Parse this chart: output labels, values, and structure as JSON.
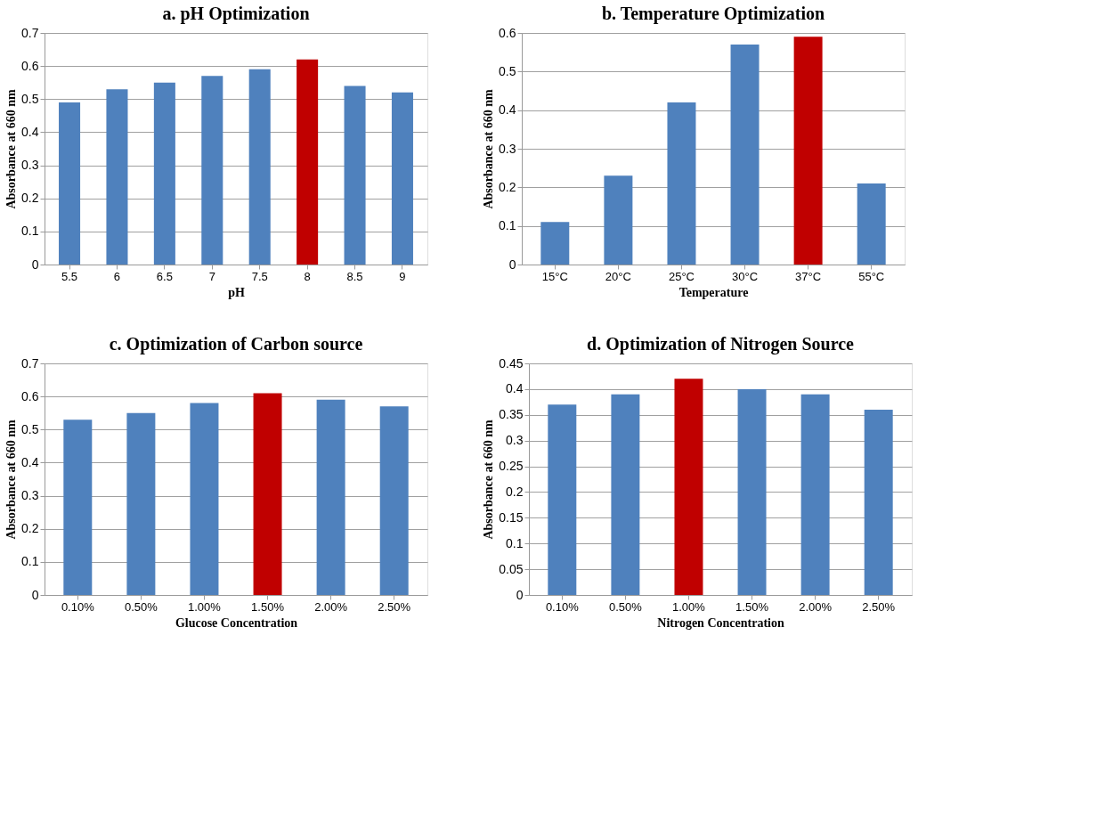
{
  "chart_data": [
    {
      "type": "bar",
      "title": "a. pH Optimization",
      "xlabel": "pH",
      "ylabel": "Absorbance at  660 nm",
      "categories": [
        "5.5",
        "6",
        "6.5",
        "7",
        "7.5",
        "8",
        "8.5",
        "9"
      ],
      "values": [
        0.49,
        0.53,
        0.55,
        0.57,
        0.59,
        0.62,
        0.54,
        0.52
      ],
      "colors": [
        "#4f81bd",
        "#4f81bd",
        "#4f81bd",
        "#4f81bd",
        "#4f81bd",
        "#c00000",
        "#4f81bd",
        "#4f81bd"
      ],
      "ylim": [
        0,
        0.7
      ],
      "yticks": [
        0,
        0.1,
        0.2,
        0.3,
        0.4,
        0.5,
        0.6,
        0.7
      ],
      "grid": "y"
    },
    {
      "type": "bar",
      "title": "b. Temperature Optimization",
      "xlabel": "Temperature",
      "ylabel": "Absorbance at 660 nm",
      "categories": [
        "15°C",
        "20°C",
        "25°C",
        "30°C",
        "37°C",
        "55°C"
      ],
      "values": [
        0.11,
        0.23,
        0.42,
        0.57,
        0.59,
        0.21
      ],
      "colors": [
        "#4f81bd",
        "#4f81bd",
        "#4f81bd",
        "#4f81bd",
        "#c00000",
        "#4f81bd"
      ],
      "ylim": [
        0,
        0.6
      ],
      "yticks": [
        0,
        0.1,
        0.2,
        0.3,
        0.4,
        0.5,
        0.6
      ],
      "grid": "y"
    },
    {
      "type": "bar",
      "title": "c. Optimization of Carbon source",
      "xlabel": "Glucose Concentration",
      "ylabel": "Absorbance at 660 nm",
      "categories": [
        "0.10%",
        "0.50%",
        "1.00%",
        "1.50%",
        "2.00%",
        "2.50%"
      ],
      "values": [
        0.53,
        0.55,
        0.58,
        0.61,
        0.59,
        0.57
      ],
      "colors": [
        "#4f81bd",
        "#4f81bd",
        "#4f81bd",
        "#c00000",
        "#4f81bd",
        "#4f81bd"
      ],
      "ylim": [
        0,
        0.7
      ],
      "yticks": [
        0,
        0.1,
        0.2,
        0.3,
        0.4,
        0.5,
        0.6,
        0.7
      ],
      "grid": "y"
    },
    {
      "type": "bar",
      "title": "d. Optimization of Nitrogen Source",
      "xlabel": "Nitrogen Concentration",
      "ylabel": "Absorbance at 660 nm",
      "categories": [
        "0.10%",
        "0.50%",
        "1.00%",
        "1.50%",
        "2.00%",
        "2.50%"
      ],
      "values": [
        0.37,
        0.39,
        0.42,
        0.4,
        0.39,
        0.36
      ],
      "colors": [
        "#4f81bd",
        "#4f81bd",
        "#c00000",
        "#4f81bd",
        "#4f81bd",
        "#4f81bd"
      ],
      "ylim": [
        0,
        0.45
      ],
      "yticks": [
        0,
        0.05,
        0.1,
        0.15,
        0.2,
        0.25,
        0.3,
        0.35,
        0.4,
        0.45
      ],
      "grid": "y"
    }
  ]
}
